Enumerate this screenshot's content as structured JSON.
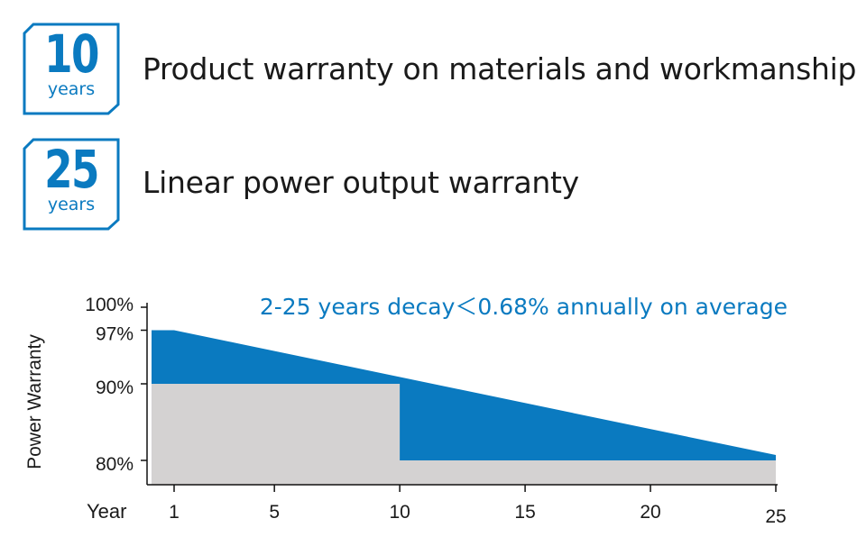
{
  "warranties": [
    {
      "number": "10",
      "unit": "years",
      "text": "Product warranty on materials and workmanship"
    },
    {
      "number": "25",
      "unit": "years",
      "text": "Linear power output warranty"
    }
  ],
  "colors": {
    "accent": "#0a7ac0",
    "guaranteed_area": "#d4d2d2",
    "text": "#1a1a1a"
  },
  "chart_data": {
    "type": "area",
    "title": "",
    "annotation": "2-25 years decay＜0.68% annually on average",
    "xlabel": "Year",
    "ylabel": "Power Warranty",
    "x_ticks": [
      1,
      5,
      10,
      15,
      20,
      25
    ],
    "x_tick_labels": [
      "1",
      "5",
      "10",
      "15",
      "20",
      "25"
    ],
    "y_ticks": [
      100,
      97,
      90,
      80
    ],
    "y_tick_labels": [
      "100%",
      "97%",
      "90%",
      "80%"
    ],
    "xlim": [
      0.1,
      25
    ],
    "ylim": [
      77,
      100
    ],
    "grid": false,
    "series": [
      {
        "x": [
          0.1,
          1,
          25
        ],
        "values": [
          97,
          97,
          80.7
        ],
        "unit": "%"
      },
      {
        "x": [
          0.1,
          10,
          10,
          25
        ],
        "values": [
          90,
          90,
          80,
          80
        ],
        "unit": "%"
      }
    ]
  }
}
